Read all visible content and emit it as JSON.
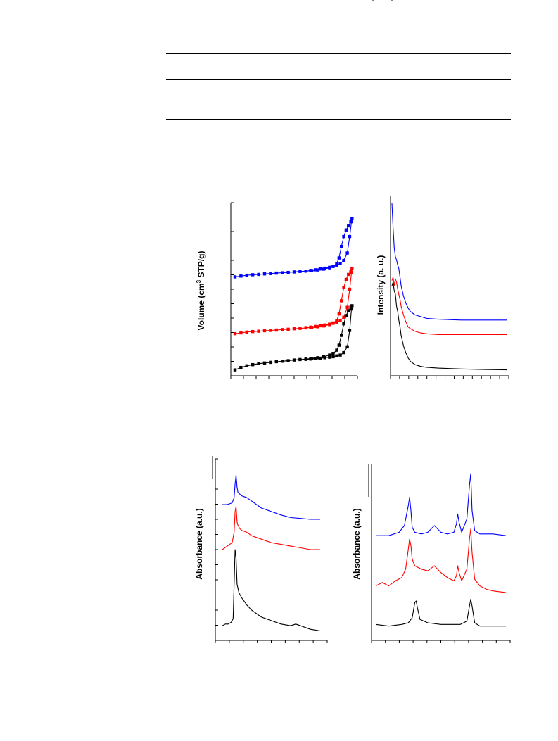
{
  "chart_data": [
    {
      "type": "line",
      "title": "",
      "xlabel": "",
      "ylabel": "Volume (cm³ STP/g)",
      "ylabel_parts": {
        "pre": "Volume (cm",
        "sup": "3",
        "post": " STP/g)"
      },
      "xlim": [
        0,
        1
      ],
      "ylim": [
        0,
        10
      ],
      "markers": "filled-squares",
      "series": [
        {
          "color": "#0000ff",
          "x": [
            0.0,
            0.05,
            0.1,
            0.15,
            0.2,
            0.25,
            0.3,
            0.35,
            0.4,
            0.45,
            0.5,
            0.55,
            0.6,
            0.65,
            0.7,
            0.75,
            0.8,
            0.83,
            0.86,
            0.88,
            0.9,
            0.92,
            0.94,
            0.96,
            0.98,
            0.99,
            0.985,
            0.97,
            0.95,
            0.92,
            0.89,
            0.86,
            0.83,
            0.8,
            0.76,
            0.72,
            0.68,
            0.64,
            0.6
          ],
          "y": [
            5.75,
            5.8,
            5.85,
            5.88,
            5.9,
            5.93,
            5.95,
            5.98,
            6.0,
            6.02,
            6.05,
            6.08,
            6.1,
            6.13,
            6.17,
            6.22,
            6.3,
            6.4,
            6.55,
            6.9,
            7.6,
            8.2,
            8.6,
            8.85,
            9.1,
            9.3,
            9.1,
            8.2,
            7.2,
            6.75,
            6.55,
            6.45,
            6.38,
            6.33,
            6.28,
            6.23,
            6.18,
            6.14,
            6.1
          ]
        },
        {
          "color": "#ff0000",
          "x": [
            0.0,
            0.05,
            0.1,
            0.15,
            0.2,
            0.25,
            0.3,
            0.35,
            0.4,
            0.45,
            0.5,
            0.55,
            0.6,
            0.65,
            0.7,
            0.75,
            0.8,
            0.83,
            0.86,
            0.88,
            0.9,
            0.92,
            0.94,
            0.96,
            0.98,
            0.99,
            0.985,
            0.97,
            0.95,
            0.92,
            0.89,
            0.86,
            0.83,
            0.8,
            0.76,
            0.72,
            0.68,
            0.64,
            0.6
          ],
          "y": [
            2.3,
            2.35,
            2.4,
            2.43,
            2.45,
            2.48,
            2.5,
            2.52,
            2.55,
            2.57,
            2.6,
            2.62,
            2.65,
            2.68,
            2.72,
            2.77,
            2.85,
            2.95,
            3.1,
            3.5,
            4.3,
            5.1,
            5.6,
            5.9,
            6.1,
            6.25,
            6.0,
            5.0,
            3.9,
            3.3,
            3.1,
            3.0,
            2.93,
            2.88,
            2.83,
            2.78,
            2.74,
            2.7,
            2.67
          ]
        },
        {
          "color": "#000000",
          "x": [
            0.0,
            0.05,
            0.1,
            0.15,
            0.2,
            0.25,
            0.3,
            0.35,
            0.4,
            0.45,
            0.5,
            0.55,
            0.6,
            0.65,
            0.7,
            0.75,
            0.8,
            0.83,
            0.86,
            0.88,
            0.9,
            0.92,
            0.94,
            0.96,
            0.98,
            0.99,
            0.985,
            0.97,
            0.95,
            0.92,
            0.89,
            0.86,
            0.83,
            0.8,
            0.76,
            0.72,
            0.68,
            0.64,
            0.6
          ],
          "y": [
            0.1,
            0.25,
            0.35,
            0.42,
            0.48,
            0.52,
            0.56,
            0.6,
            0.63,
            0.66,
            0.7,
            0.73,
            0.76,
            0.8,
            0.84,
            0.9,
            1.0,
            1.1,
            1.3,
            1.6,
            2.2,
            2.9,
            3.4,
            3.7,
            3.9,
            4.0,
            3.8,
            2.5,
            1.5,
            1.15,
            1.0,
            0.95,
            0.9,
            0.87,
            0.84,
            0.81,
            0.78,
            0.76,
            0.74
          ]
        }
      ]
    },
    {
      "type": "line",
      "title": "",
      "xlabel": "",
      "ylabel": "Intensity (a. u.)",
      "xlim": [
        0,
        1
      ],
      "ylim": [
        0,
        1
      ],
      "series": [
        {
          "color": "#0000ff",
          "x": [
            0.0,
            0.01,
            0.02,
            0.03,
            0.04,
            0.05,
            0.06,
            0.07,
            0.08,
            0.1,
            0.12,
            0.14,
            0.16,
            0.2,
            0.25,
            0.3,
            0.4,
            0.6,
            0.8,
            1.0
          ],
          "y": [
            0.98,
            0.84,
            0.72,
            0.67,
            0.65,
            0.62,
            0.6,
            0.55,
            0.5,
            0.44,
            0.4,
            0.37,
            0.35,
            0.33,
            0.32,
            0.31,
            0.305,
            0.3,
            0.3,
            0.3
          ]
        },
        {
          "color": "#ff0000",
          "x": [
            0.0,
            0.01,
            0.02,
            0.03,
            0.04,
            0.05,
            0.06,
            0.07,
            0.08,
            0.1,
            0.12,
            0.14,
            0.16,
            0.2,
            0.25,
            0.3,
            0.4,
            0.6,
            0.8,
            1.0
          ],
          "y": [
            0.53,
            0.55,
            0.5,
            0.54,
            0.52,
            0.48,
            0.45,
            0.42,
            0.38,
            0.33,
            0.29,
            0.26,
            0.25,
            0.235,
            0.225,
            0.22,
            0.215,
            0.215,
            0.215,
            0.215
          ]
        },
        {
          "color": "#000000",
          "x": [
            0.0,
            0.01,
            0.02,
            0.03,
            0.04,
            0.05,
            0.06,
            0.07,
            0.08,
            0.1,
            0.12,
            0.14,
            0.16,
            0.2,
            0.25,
            0.3,
            0.4,
            0.6,
            0.8,
            1.0
          ],
          "y": [
            0.5,
            0.52,
            0.47,
            0.45,
            0.38,
            0.35,
            0.3,
            0.26,
            0.21,
            0.15,
            0.11,
            0.08,
            0.06,
            0.04,
            0.03,
            0.025,
            0.02,
            0.015,
            0.012,
            0.01
          ]
        }
      ]
    },
    {
      "type": "line",
      "title": "",
      "xlabel": "",
      "ylabel": "Absorbance (a.u.)",
      "xlim": [
        0,
        1
      ],
      "ylim": [
        0,
        1
      ],
      "series": [
        {
          "color": "#0000ff",
          "x": [
            0.0,
            0.05,
            0.1,
            0.12,
            0.13,
            0.14,
            0.15,
            0.16,
            0.18,
            0.2,
            0.25,
            0.3,
            0.35,
            0.4,
            0.45,
            0.5,
            0.6,
            0.7,
            0.8,
            0.9,
            1.0
          ],
          "y": [
            0.76,
            0.76,
            0.77,
            0.8,
            0.88,
            0.93,
            0.86,
            0.83,
            0.82,
            0.81,
            0.8,
            0.78,
            0.76,
            0.74,
            0.73,
            0.72,
            0.7,
            0.685,
            0.68,
            0.675,
            0.675
          ]
        },
        {
          "color": "#ff0000",
          "x": [
            0.0,
            0.05,
            0.1,
            0.12,
            0.13,
            0.14,
            0.15,
            0.16,
            0.18,
            0.2,
            0.25,
            0.3,
            0.35,
            0.4,
            0.45,
            0.5,
            0.6,
            0.7,
            0.8,
            0.9,
            1.0
          ],
          "y": [
            0.5,
            0.52,
            0.54,
            0.6,
            0.72,
            0.75,
            0.66,
            0.64,
            0.62,
            0.61,
            0.6,
            0.58,
            0.57,
            0.56,
            0.55,
            0.54,
            0.53,
            0.52,
            0.51,
            0.5,
            0.5
          ]
        },
        {
          "color": "#000000",
          "x": [
            0.0,
            0.03,
            0.06,
            0.09,
            0.11,
            0.12,
            0.13,
            0.14,
            0.15,
            0.17,
            0.2,
            0.25,
            0.3,
            0.35,
            0.4,
            0.5,
            0.6,
            0.7,
            0.75,
            0.8,
            0.9,
            1.0
          ],
          "y": [
            0.06,
            0.07,
            0.07,
            0.08,
            0.1,
            0.3,
            0.5,
            0.45,
            0.3,
            0.25,
            0.22,
            0.18,
            0.15,
            0.13,
            0.11,
            0.09,
            0.07,
            0.06,
            0.07,
            0.06,
            0.04,
            0.03
          ]
        }
      ]
    },
    {
      "type": "line",
      "title": "",
      "xlabel": "",
      "ylabel": "Absorbance (a.u.)",
      "xlim": [
        0,
        1
      ],
      "ylim": [
        0,
        1
      ],
      "series": [
        {
          "color": "#0000ff",
          "x": [
            0.0,
            0.1,
            0.18,
            0.22,
            0.25,
            0.26,
            0.27,
            0.28,
            0.3,
            0.35,
            0.4,
            0.45,
            0.5,
            0.55,
            0.6,
            0.6,
            0.62,
            0.63,
            0.64,
            0.66,
            0.7,
            0.72,
            0.73,
            0.74,
            0.76,
            0.8,
            0.85,
            0.9,
            1.0
          ],
          "y": [
            0.6,
            0.6,
            0.62,
            0.66,
            0.78,
            0.83,
            0.75,
            0.65,
            0.62,
            0.61,
            0.62,
            0.66,
            0.62,
            0.61,
            0.62,
            0.62,
            0.67,
            0.73,
            0.68,
            0.62,
            0.7,
            0.9,
            0.97,
            0.75,
            0.63,
            0.61,
            0.61,
            0.61,
            0.6
          ]
        },
        {
          "color": "#ff0000",
          "x": [
            0.0,
            0.05,
            0.1,
            0.15,
            0.2,
            0.23,
            0.25,
            0.26,
            0.27,
            0.28,
            0.3,
            0.35,
            0.4,
            0.45,
            0.5,
            0.55,
            0.6,
            0.62,
            0.63,
            0.64,
            0.66,
            0.7,
            0.72,
            0.73,
            0.74,
            0.76,
            0.8,
            0.85,
            0.9,
            1.0
          ],
          "y": [
            0.3,
            0.32,
            0.3,
            0.33,
            0.35,
            0.4,
            0.52,
            0.58,
            0.54,
            0.46,
            0.42,
            0.4,
            0.39,
            0.42,
            0.38,
            0.35,
            0.33,
            0.36,
            0.42,
            0.38,
            0.33,
            0.4,
            0.58,
            0.64,
            0.5,
            0.34,
            0.3,
            0.28,
            0.27,
            0.26
          ]
        },
        {
          "color": "#000000",
          "x": [
            0.0,
            0.1,
            0.2,
            0.25,
            0.28,
            0.3,
            0.31,
            0.32,
            0.34,
            0.4,
            0.5,
            0.6,
            0.65,
            0.7,
            0.72,
            0.73,
            0.74,
            0.76,
            0.8,
            0.9,
            1.0
          ],
          "y": [
            0.07,
            0.06,
            0.07,
            0.08,
            0.11,
            0.2,
            0.21,
            0.17,
            0.1,
            0.08,
            0.07,
            0.07,
            0.07,
            0.09,
            0.18,
            0.22,
            0.18,
            0.08,
            0.06,
            0.06,
            0.06
          ]
        }
      ]
    }
  ]
}
